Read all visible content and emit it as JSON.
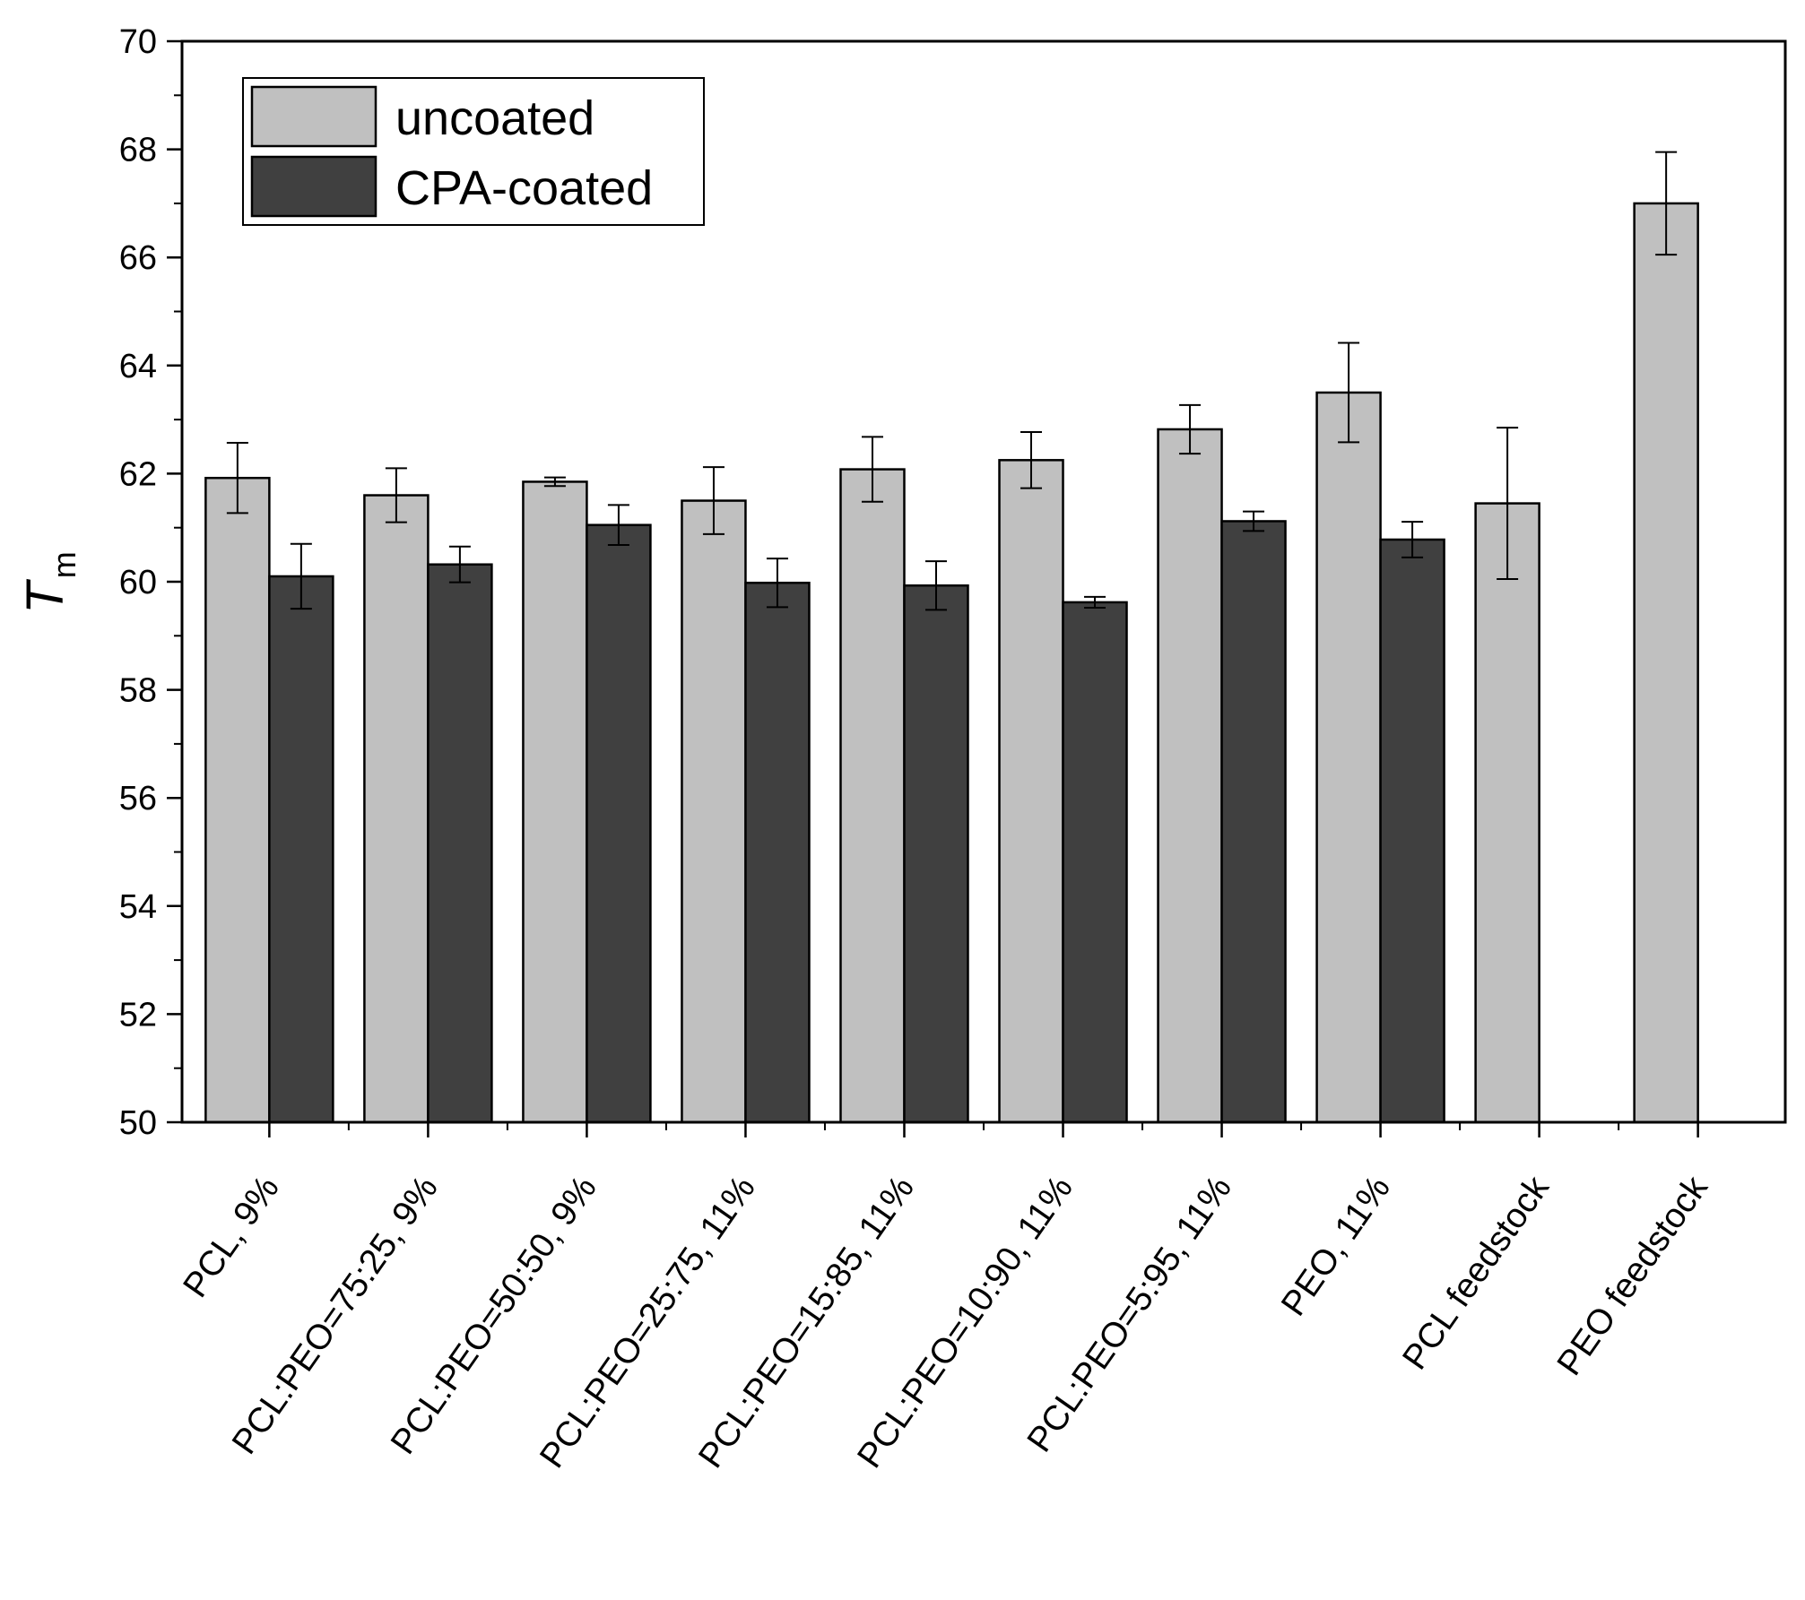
{
  "chart_data": {
    "type": "bar",
    "title": "",
    "xlabel": "",
    "ylabel": "T",
    "ylabel_subscript": "m",
    "ylim": [
      50,
      70
    ],
    "yticks": [
      50,
      52,
      54,
      56,
      58,
      60,
      62,
      64,
      66,
      68,
      70
    ],
    "categories": [
      "PCL, 9%",
      "PCL:PEO=75:25, 9%",
      "PCL:PEO=50:50, 9%",
      "PCL:PEO=25:75, 11%",
      "PCL:PEO=15:85, 11%",
      "PCL:PEO=10:90, 11%",
      "PCL:PEO=5:95, 11%",
      "PEO, 11%",
      "PCL feedstock",
      "PEO feedstock"
    ],
    "series": [
      {
        "name": "uncoated",
        "color": "#c0c0c0",
        "values": [
          61.92,
          61.6,
          61.85,
          61.5,
          62.08,
          62.25,
          62.82,
          63.5,
          61.45,
          67.0
        ],
        "errors": [
          0.65,
          0.5,
          0.08,
          0.62,
          0.6,
          0.52,
          0.45,
          0.92,
          1.4,
          0.95
        ]
      },
      {
        "name": "CPA-coated",
        "color": "#404040",
        "values": [
          60.1,
          60.32,
          61.05,
          59.98,
          59.93,
          59.62,
          61.12,
          60.78,
          null,
          null
        ],
        "errors": [
          0.6,
          0.33,
          0.37,
          0.45,
          0.45,
          0.1,
          0.18,
          0.33,
          null,
          null
        ]
      }
    ],
    "legend": {
      "position": "top-left"
    },
    "grid": false
  }
}
